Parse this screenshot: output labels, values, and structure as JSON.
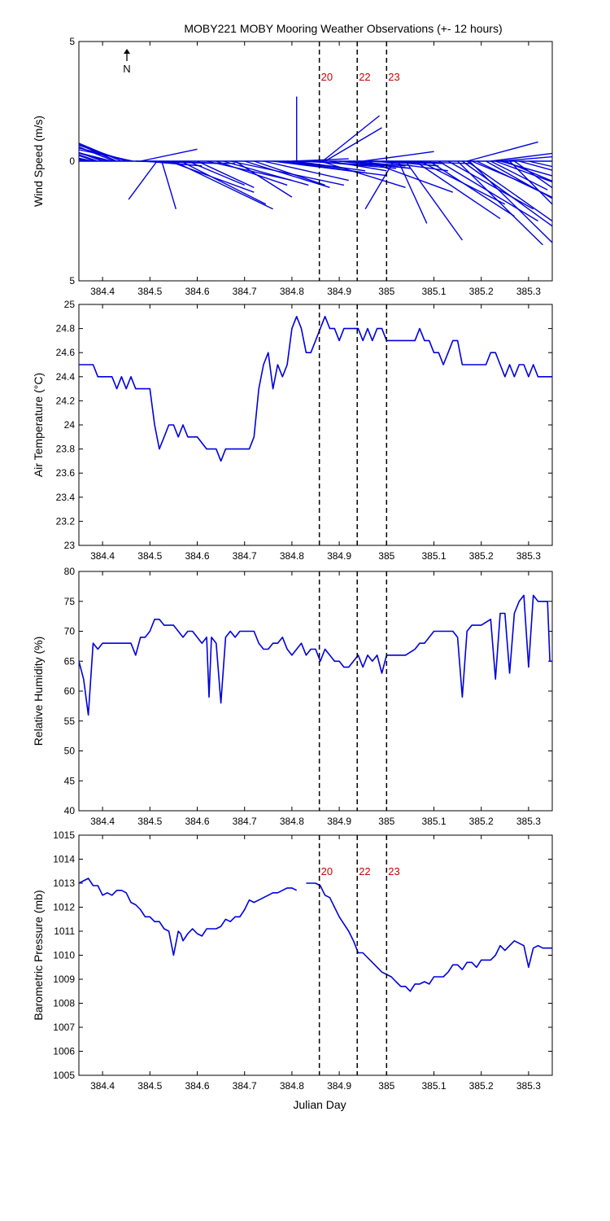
{
  "title": "MOBY221 MOBY Mooring Weather Observations (+- 12 hours)",
  "north_label": "N",
  "x_label": "Julian Day",
  "colors": {
    "series": "#0000dd",
    "marker_text": "#cc0000",
    "axis": "#000000",
    "marker_line": "#000000"
  },
  "x_ticks": [
    "384.4",
    "384.5",
    "384.6",
    "384.7",
    "384.8",
    "384.9",
    "385",
    "385.1",
    "385.2",
    "385.3"
  ],
  "markers": {
    "days": [
      384.858,
      384.938,
      385.0
    ],
    "labels": [
      "20",
      "22",
      "23"
    ]
  },
  "chart_data": [
    {
      "type": "vector",
      "ylabel": "Wind Speed (m/s)",
      "xlim": [
        384.35,
        385.35
      ],
      "ylim": [
        -5,
        5
      ],
      "y_ticks": [
        "5",
        "",
        "0",
        "",
        "5"
      ],
      "y_tick_values": [
        5,
        0,
        -5
      ],
      "y_tick_text": [
        "5",
        "0",
        "5"
      ],
      "vectors": [
        [
          384.36,
          -0.3,
          1.2
        ],
        [
          384.37,
          -0.3,
          0.8
        ],
        [
          384.38,
          -0.2,
          0.5
        ],
        [
          384.385,
          -0.5,
          2.0
        ],
        [
          384.39,
          -0.4,
          1.6
        ],
        [
          384.4,
          -0.3,
          1.3
        ],
        [
          384.41,
          -0.3,
          1.0
        ],
        [
          384.42,
          -0.2,
          0.6
        ],
        [
          384.425,
          -0.4,
          1.9
        ],
        [
          384.43,
          -0.4,
          2.1
        ],
        [
          384.44,
          -0.3,
          1.5
        ],
        [
          384.45,
          -0.3,
          1.2
        ],
        [
          384.46,
          -0.2,
          0.6
        ],
        [
          384.465,
          -0.2,
          0.5
        ],
        [
          384.47,
          0.3,
          -0.1
        ],
        [
          384.48,
          0.2,
          0.5
        ],
        [
          384.49,
          0.2,
          -0.2
        ],
        [
          384.5,
          0.3,
          -0.1
        ],
        [
          384.515,
          -0.1,
          -1.6
        ],
        [
          384.525,
          0.05,
          -2.0
        ],
        [
          384.54,
          0.3,
          -1.3
        ],
        [
          384.55,
          0.35,
          -2.0
        ],
        [
          384.565,
          0.3,
          -1.8
        ],
        [
          384.58,
          0.2,
          -1.0
        ],
        [
          384.6,
          0.2,
          -1.1
        ],
        [
          384.62,
          0.3,
          -0.8
        ],
        [
          384.64,
          0.25,
          -1.0
        ],
        [
          384.655,
          0.3,
          -1.0
        ],
        [
          384.67,
          0.4,
          -1.0
        ],
        [
          384.68,
          0.2,
          -1.5
        ],
        [
          384.7,
          0.3,
          -1.1
        ],
        [
          384.72,
          0.25,
          -1.0
        ],
        [
          384.74,
          0.3,
          -0.8
        ],
        [
          384.76,
          0.4,
          -0.6
        ],
        [
          384.78,
          0.3,
          -0.5
        ],
        [
          384.79,
          0.2,
          -0.3
        ],
        [
          384.8,
          0.2,
          0.1
        ],
        [
          384.805,
          0.25,
          -0.4
        ],
        [
          384.81,
          0.0,
          2.7
        ],
        [
          384.82,
          0.3,
          -0.2
        ],
        [
          384.84,
          0.3,
          -0.3
        ],
        [
          384.86,
          0.3,
          -1.1
        ],
        [
          384.865,
          0.2,
          1.9
        ],
        [
          384.87,
          0.2,
          1.4
        ],
        [
          384.88,
          0.2,
          -0.4
        ],
        [
          384.9,
          0.25,
          -0.3
        ],
        [
          384.92,
          0.2,
          -0.2
        ],
        [
          384.93,
          0.2,
          -0.3
        ],
        [
          384.94,
          0.3,
          -0.1
        ],
        [
          384.95,
          0.25,
          0.4
        ],
        [
          384.96,
          0.3,
          -1.3
        ],
        [
          384.98,
          0.25,
          -0.4
        ],
        [
          384.99,
          0.2,
          -0.2
        ],
        [
          385.0,
          0.3,
          -0.1
        ],
        [
          385.015,
          -0.1,
          -2.0
        ],
        [
          385.025,
          0.1,
          -2.6
        ],
        [
          385.04,
          0.2,
          -3.3
        ],
        [
          385.06,
          0.3,
          -2.4
        ],
        [
          385.07,
          0.3,
          -1.8
        ],
        [
          385.09,
          0.3,
          -2.3
        ],
        [
          385.11,
          0.35,
          -2.5
        ],
        [
          385.13,
          0.3,
          -2.0
        ],
        [
          385.15,
          0.3,
          -3.5
        ],
        [
          385.16,
          0.35,
          -3.0
        ],
        [
          385.17,
          0.3,
          -2.5
        ],
        [
          385.175,
          0.3,
          -3.5
        ],
        [
          385.18,
          0.2,
          -1.0
        ],
        [
          385.19,
          0.3,
          -1.7
        ],
        [
          385.21,
          0.3,
          -2.0
        ],
        [
          385.22,
          0.2,
          -1.2
        ],
        [
          385.23,
          0.3,
          -1.3
        ],
        [
          385.24,
          0.3,
          -1.0
        ],
        [
          385.25,
          0.3,
          -1.5
        ],
        [
          385.26,
          0.25,
          -3.0
        ],
        [
          385.27,
          0.3,
          -2.5
        ],
        [
          385.28,
          0.4,
          -1.3
        ],
        [
          385.3,
          0.3,
          -0.8
        ],
        [
          385.17,
          0.25,
          0.8
        ],
        [
          385.22,
          0.4,
          0.6
        ],
        [
          385.24,
          0.3,
          0.3
        ]
      ]
    },
    {
      "type": "line",
      "ylabel": "Air Temperature (°C)",
      "xlim": [
        384.35,
        385.35
      ],
      "ylim": [
        23,
        25
      ],
      "y_tick_values": [
        23,
        23.2,
        23.4,
        23.6,
        23.8,
        24,
        24.2,
        24.4,
        24.6,
        24.8,
        25
      ],
      "y_tick_text": [
        "23",
        "23.2",
        "23.4",
        "23.6",
        "23.8",
        "24",
        "24.2",
        "24.4",
        "24.6",
        "24.8",
        "25"
      ],
      "x": [
        384.35,
        384.36,
        384.38,
        384.39,
        384.4,
        384.42,
        384.43,
        384.44,
        384.45,
        384.46,
        384.47,
        384.48,
        384.49,
        384.5,
        384.51,
        384.52,
        384.53,
        384.54,
        384.55,
        384.56,
        384.57,
        384.58,
        384.59,
        384.6,
        384.62,
        384.63,
        384.64,
        384.65,
        384.66,
        384.67,
        384.68,
        384.7,
        384.71,
        384.72,
        384.73,
        384.74,
        384.75,
        384.76,
        384.77,
        384.78,
        384.79,
        384.8,
        384.81,
        384.82,
        384.83,
        384.84,
        384.85,
        384.86,
        384.87,
        384.88,
        384.89,
        384.9,
        384.91,
        384.92,
        384.93,
        384.94,
        384.95,
        384.96,
        384.97,
        384.98,
        384.99,
        385.0,
        385.01,
        385.02,
        385.04,
        385.06,
        385.07,
        385.08,
        385.09,
        385.1,
        385.11,
        385.12,
        385.13,
        385.14,
        385.15,
        385.16,
        385.17,
        385.18,
        385.19,
        385.2,
        385.21,
        385.22,
        385.23,
        385.24,
        385.25,
        385.26,
        385.27,
        385.28,
        385.29,
        385.3,
        385.31,
        385.32,
        385.33,
        385.34,
        385.35
      ],
      "y": [
        24.5,
        24.5,
        24.5,
        24.4,
        24.4,
        24.4,
        24.3,
        24.4,
        24.3,
        24.4,
        24.3,
        24.3,
        24.3,
        24.3,
        24.0,
        23.8,
        23.9,
        24.0,
        24.0,
        23.9,
        24.0,
        23.9,
        23.9,
        23.9,
        23.8,
        23.8,
        23.8,
        23.7,
        23.8,
        23.8,
        23.8,
        23.8,
        23.8,
        23.9,
        24.3,
        24.5,
        24.6,
        24.3,
        24.5,
        24.4,
        24.5,
        24.8,
        24.9,
        24.8,
        24.6,
        24.6,
        24.7,
        24.8,
        24.9,
        24.8,
        24.8,
        24.7,
        24.8,
        24.8,
        24.8,
        24.8,
        24.7,
        24.8,
        24.7,
        24.8,
        24.8,
        24.7,
        24.7,
        24.7,
        24.7,
        24.7,
        24.8,
        24.7,
        24.7,
        24.6,
        24.6,
        24.5,
        24.6,
        24.7,
        24.7,
        24.5,
        24.5,
        24.5,
        24.5,
        24.5,
        24.5,
        24.6,
        24.6,
        24.5,
        24.4,
        24.5,
        24.4,
        24.5,
        24.5,
        24.4,
        24.5,
        24.4,
        24.4,
        24.4,
        24.4
      ]
    },
    {
      "type": "line",
      "ylabel": "Relative Humidity (%)",
      "xlim": [
        384.35,
        385.35
      ],
      "ylim": [
        40,
        80
      ],
      "y_tick_values": [
        40,
        45,
        50,
        55,
        60,
        65,
        70,
        75,
        80
      ],
      "y_tick_text": [
        "40",
        "45",
        "50",
        "55",
        "60",
        "65",
        "70",
        "75",
        "80"
      ],
      "x": [
        384.35,
        384.36,
        384.37,
        384.38,
        384.39,
        384.4,
        384.42,
        384.44,
        384.45,
        384.46,
        384.47,
        384.48,
        384.49,
        384.5,
        384.51,
        384.52,
        384.53,
        384.55,
        384.56,
        384.57,
        384.58,
        384.59,
        384.6,
        384.61,
        384.62,
        384.625,
        384.63,
        384.64,
        384.65,
        384.66,
        384.67,
        384.68,
        384.69,
        384.7,
        384.72,
        384.73,
        384.74,
        384.75,
        384.76,
        384.77,
        384.78,
        384.79,
        384.8,
        384.82,
        384.83,
        384.84,
        384.85,
        384.86,
        384.87,
        384.88,
        384.89,
        384.9,
        384.91,
        384.92,
        384.93,
        384.94,
        384.95,
        384.96,
        384.97,
        384.98,
        384.99,
        385.0,
        385.01,
        385.02,
        385.04,
        385.06,
        385.07,
        385.08,
        385.09,
        385.1,
        385.12,
        385.14,
        385.15,
        385.16,
        385.17,
        385.18,
        385.19,
        385.2,
        385.22,
        385.23,
        385.24,
        385.25,
        385.26,
        385.27,
        385.28,
        385.29,
        385.3,
        385.31,
        385.32,
        385.33,
        385.34,
        385.345,
        385.35
      ],
      "y": [
        65,
        62,
        56,
        68,
        67,
        68,
        68,
        68,
        68,
        68,
        66,
        69,
        69,
        70,
        72,
        72,
        71,
        71,
        70,
        69,
        70,
        70,
        69,
        68,
        69,
        59,
        69,
        68,
        58,
        69,
        70,
        69,
        70,
        70,
        70,
        68,
        67,
        67,
        68,
        68,
        69,
        67,
        66,
        68,
        66,
        67,
        67,
        65,
        67,
        66,
        65,
        65,
        64,
        64,
        65,
        66,
        64,
        66,
        65,
        66,
        63,
        66,
        66,
        66,
        66,
        67,
        68,
        68,
        69,
        70,
        70,
        70,
        69,
        59,
        70,
        71,
        71,
        71,
        72,
        62,
        73,
        73,
        63,
        73,
        75,
        76,
        64,
        76,
        75,
        75,
        75,
        65,
        65
      ]
    },
    {
      "type": "line",
      "ylabel": "Barometric Pressure (mb)",
      "xlim": [
        384.35,
        385.35
      ],
      "ylim": [
        1005,
        1015
      ],
      "y_tick_values": [
        1005,
        1006,
        1007,
        1008,
        1009,
        1010,
        1011,
        1012,
        1013,
        1014,
        1015
      ],
      "y_tick_text": [
        "1005",
        "1006",
        "1007",
        "1008",
        "1009",
        "1010",
        "1011",
        "1012",
        "1013",
        "1014",
        "1015"
      ],
      "segments": [
        {
          "x": [
            384.35,
            384.36,
            384.37,
            384.38,
            384.39,
            384.4,
            384.41,
            384.42,
            384.43,
            384.44,
            384.45,
            384.46,
            384.47,
            384.48,
            384.49,
            384.5,
            384.51,
            384.52,
            384.53,
            384.54,
            384.55,
            384.56,
            384.565,
            384.57,
            384.58,
            384.59,
            384.6,
            384.61,
            384.62,
            384.63,
            384.64,
            384.65,
            384.66,
            384.67,
            384.68,
            384.69,
            384.7,
            384.71,
            384.72,
            384.73,
            384.74,
            384.75,
            384.76,
            384.77,
            384.78,
            384.79,
            384.8,
            384.81
          ],
          "y": [
            1013.0,
            1013.1,
            1013.2,
            1012.9,
            1012.9,
            1012.5,
            1012.6,
            1012.5,
            1012.7,
            1012.7,
            1012.6,
            1012.2,
            1012.1,
            1011.9,
            1011.6,
            1011.6,
            1011.4,
            1011.4,
            1011.1,
            1011.0,
            1010.0,
            1011.0,
            1010.9,
            1010.6,
            1010.9,
            1011.1,
            1010.9,
            1010.8,
            1011.1,
            1011.1,
            1011.1,
            1011.2,
            1011.5,
            1011.4,
            1011.6,
            1011.6,
            1011.9,
            1012.3,
            1012.2,
            1012.3,
            1012.4,
            1012.5,
            1012.6,
            1012.6,
            1012.7,
            1012.8,
            1012.8,
            1012.7
          ]
        },
        {
          "x": [
            384.83,
            384.84,
            384.85,
            384.86,
            384.87,
            384.88,
            384.89,
            384.9,
            384.91,
            384.92,
            384.93,
            384.94,
            384.95,
            384.96,
            384.97,
            384.98,
            384.99,
            385.0,
            385.01,
            385.02,
            385.03,
            385.04,
            385.05,
            385.06,
            385.07,
            385.08,
            385.09,
            385.1,
            385.11,
            385.12,
            385.13,
            385.14,
            385.15,
            385.16,
            385.17,
            385.18,
            385.19,
            385.2,
            385.21,
            385.22,
            385.23,
            385.24,
            385.25,
            385.26,
            385.27,
            385.28,
            385.29,
            385.3,
            385.31,
            385.32,
            385.33,
            385.34,
            385.35
          ],
          "y": [
            1013.0,
            1013.0,
            1013.0,
            1012.9,
            1012.5,
            1012.4,
            1012.0,
            1011.6,
            1011.3,
            1011.0,
            1010.6,
            1010.1,
            1010.1,
            1009.9,
            1009.7,
            1009.5,
            1009.3,
            1009.2,
            1009.1,
            1008.9,
            1008.7,
            1008.7,
            1008.5,
            1008.8,
            1008.8,
            1008.9,
            1008.8,
            1009.1,
            1009.1,
            1009.1,
            1009.3,
            1009.6,
            1009.6,
            1009.4,
            1009.7,
            1009.7,
            1009.5,
            1009.8,
            1009.8,
            1009.8,
            1010.0,
            1010.4,
            1010.2,
            1010.4,
            1010.6,
            1010.5,
            1010.4,
            1009.5,
            1010.3,
            1010.4,
            1010.3,
            1010.3,
            1010.3
          ]
        }
      ]
    }
  ]
}
